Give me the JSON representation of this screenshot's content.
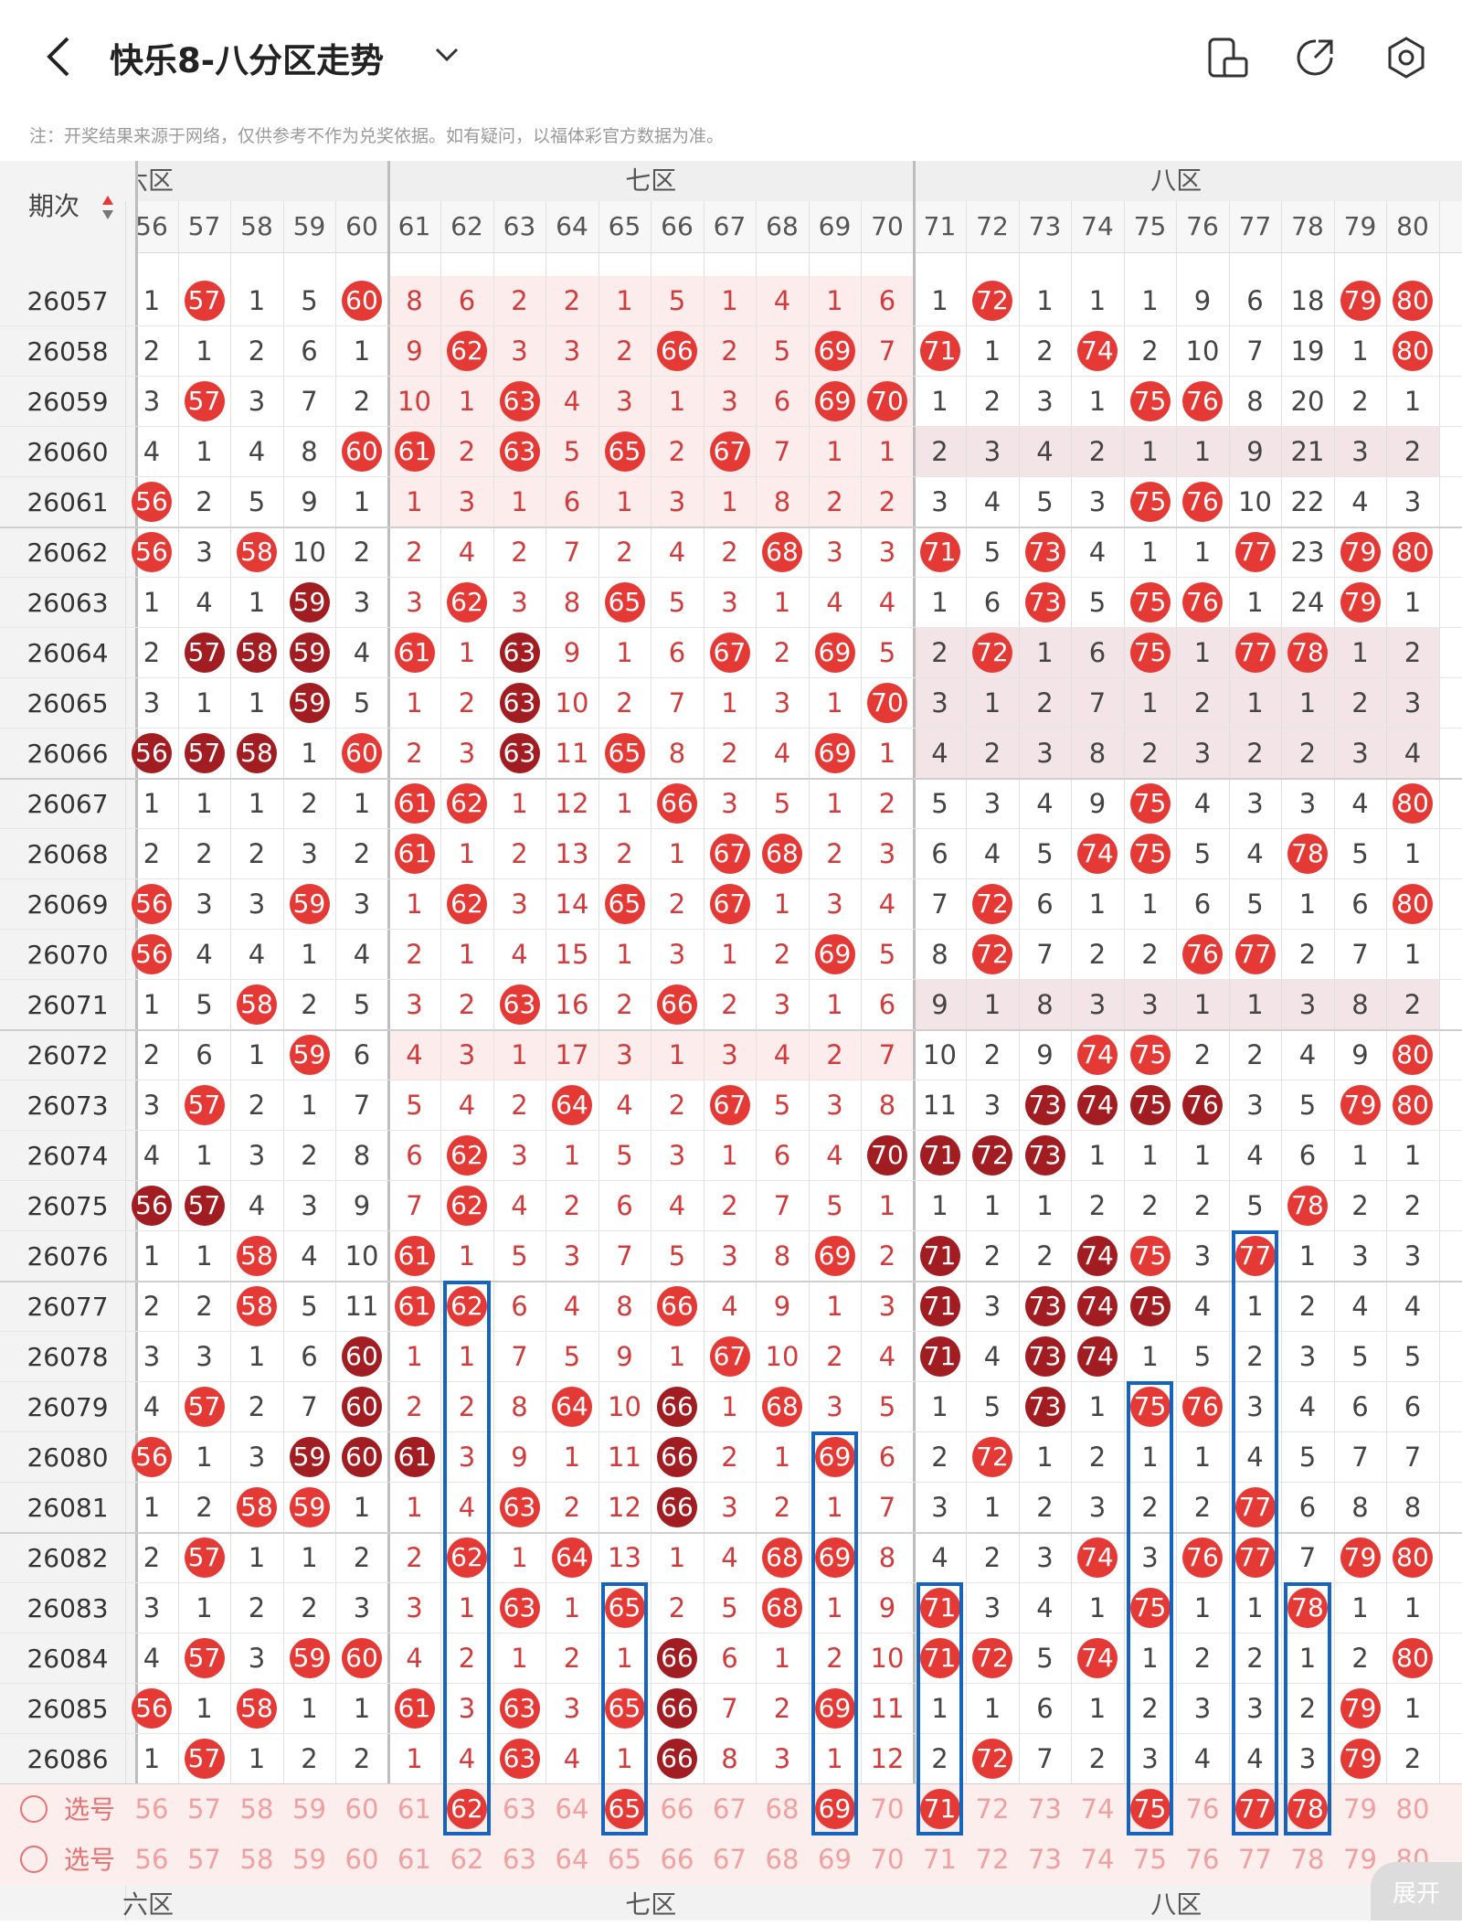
{
  "header": {
    "title": "快乐8-八分区走势"
  },
  "icons": [
    "back-icon",
    "chevron-down-icon",
    "device-icon",
    "share-icon",
    "settings-icon"
  ],
  "notice": "注：开奖结果来源于网络，仅供参考不作为兑奖依据。如有疑问，以福体彩官方数据为准。",
  "table": {
    "period_label": "期次",
    "zones": [
      "六区",
      "七区",
      "八区"
    ],
    "columns": [
      56,
      57,
      58,
      59,
      60,
      61,
      62,
      63,
      64,
      65,
      66,
      67,
      68,
      69,
      70,
      71,
      72,
      73,
      74,
      75,
      76,
      77,
      78,
      79,
      80
    ],
    "rows": [
      {
        "issue": "26057",
        "cells": [
          1,
          "57",
          1,
          5,
          "60",
          8,
          6,
          2,
          2,
          1,
          5,
          1,
          4,
          1,
          6,
          1,
          "72",
          1,
          1,
          1,
          9,
          6,
          18,
          "79",
          "80"
        ]
      },
      {
        "issue": "26058",
        "cells": [
          2,
          1,
          2,
          6,
          1,
          9,
          "62",
          3,
          3,
          2,
          "66",
          2,
          5,
          "69",
          7,
          "71",
          1,
          2,
          "74",
          2,
          10,
          7,
          19,
          1,
          "80"
        ]
      },
      {
        "issue": "26059",
        "cells": [
          3,
          "57",
          3,
          7,
          2,
          10,
          1,
          "63",
          4,
          3,
          1,
          3,
          6,
          "69",
          "70",
          1,
          2,
          3,
          1,
          "75",
          "76",
          8,
          20,
          2,
          1
        ]
      },
      {
        "issue": "26060",
        "cells": [
          4,
          1,
          4,
          8,
          "60",
          "61",
          2,
          "63",
          5,
          "65",
          2,
          "67",
          7,
          1,
          1,
          2,
          3,
          4,
          2,
          1,
          1,
          9,
          21,
          3,
          2
        ]
      },
      {
        "issue": "26061",
        "cells": [
          "56",
          2,
          5,
          9,
          1,
          1,
          3,
          1,
          6,
          1,
          3,
          1,
          8,
          2,
          2,
          3,
          4,
          5,
          3,
          "75",
          "76",
          10,
          22,
          4,
          3
        ]
      },
      {
        "issue": "26062",
        "cells": [
          "56",
          3,
          "58",
          10,
          2,
          2,
          4,
          2,
          7,
          2,
          4,
          2,
          "68",
          3,
          3,
          "71",
          5,
          "73",
          4,
          1,
          1,
          "77",
          23,
          "79",
          "80"
        ]
      },
      {
        "issue": "26063",
        "cells": [
          1,
          4,
          1,
          "59d",
          3,
          3,
          "62",
          3,
          8,
          "65",
          5,
          3,
          1,
          4,
          4,
          1,
          6,
          "73",
          5,
          "75",
          "76",
          1,
          24,
          "79",
          1
        ]
      },
      {
        "issue": "26064",
        "cells": [
          2,
          "57d",
          "58d",
          "59d",
          4,
          "61",
          1,
          "63d",
          9,
          1,
          6,
          "67",
          2,
          "69",
          5,
          2,
          "72",
          1,
          6,
          "75",
          1,
          "77",
          "78",
          1,
          2
        ]
      },
      {
        "issue": "26065",
        "cells": [
          3,
          1,
          1,
          "59d",
          5,
          1,
          2,
          "63d",
          10,
          2,
          7,
          1,
          3,
          1,
          "70",
          3,
          1,
          2,
          7,
          1,
          2,
          1,
          1,
          2,
          3
        ]
      },
      {
        "issue": "26066",
        "cells": [
          "56d",
          "57d",
          "58d",
          1,
          "60",
          2,
          3,
          "63d",
          11,
          "65",
          8,
          2,
          4,
          "69",
          1,
          4,
          2,
          3,
          8,
          2,
          3,
          2,
          2,
          3,
          4
        ]
      },
      {
        "issue": "26067",
        "cells": [
          1,
          1,
          1,
          2,
          1,
          "61",
          "62",
          1,
          12,
          1,
          "66",
          3,
          5,
          1,
          2,
          5,
          3,
          4,
          9,
          "75",
          4,
          3,
          3,
          4,
          "80"
        ]
      },
      {
        "issue": "26068",
        "cells": [
          2,
          2,
          2,
          3,
          2,
          "61",
          1,
          2,
          13,
          2,
          1,
          "67",
          "68",
          2,
          3,
          6,
          4,
          5,
          "74",
          "75",
          5,
          4,
          "78",
          5,
          1
        ]
      },
      {
        "issue": "26069",
        "cells": [
          "56",
          3,
          3,
          "59",
          3,
          1,
          "62",
          3,
          14,
          "65",
          2,
          "67",
          1,
          3,
          4,
          7,
          "72",
          6,
          1,
          1,
          6,
          5,
          1,
          6,
          "80"
        ]
      },
      {
        "issue": "26070",
        "cells": [
          "56",
          4,
          4,
          1,
          4,
          2,
          1,
          4,
          15,
          1,
          3,
          1,
          2,
          "69",
          5,
          8,
          "72",
          7,
          2,
          2,
          "76",
          "77",
          2,
          7,
          1
        ]
      },
      {
        "issue": "26071",
        "cells": [
          1,
          5,
          "58",
          2,
          5,
          3,
          2,
          "63",
          16,
          2,
          "66",
          2,
          3,
          1,
          6,
          9,
          1,
          8,
          3,
          3,
          1,
          1,
          3,
          8,
          2
        ]
      },
      {
        "issue": "26072",
        "cells": [
          2,
          6,
          1,
          "59",
          6,
          4,
          3,
          1,
          17,
          3,
          1,
          3,
          4,
          2,
          7,
          10,
          2,
          9,
          "74",
          "75",
          2,
          2,
          4,
          9,
          "80"
        ]
      },
      {
        "issue": "26073",
        "cells": [
          3,
          "57",
          2,
          1,
          7,
          5,
          4,
          2,
          "64",
          4,
          2,
          "67",
          5,
          3,
          8,
          11,
          3,
          "73d",
          "74d",
          "75d",
          "76d",
          3,
          5,
          "79",
          "80"
        ]
      },
      {
        "issue": "26074",
        "cells": [
          4,
          1,
          3,
          2,
          8,
          6,
          "62",
          3,
          1,
          5,
          3,
          1,
          6,
          4,
          "70d",
          "71d",
          "72d",
          "73d",
          1,
          1,
          1,
          4,
          6,
          1,
          1
        ]
      },
      {
        "issue": "26075",
        "cells": [
          "56d",
          "57d",
          4,
          3,
          9,
          7,
          "62",
          4,
          2,
          6,
          4,
          2,
          7,
          5,
          1,
          1,
          1,
          1,
          2,
          2,
          2,
          5,
          "78",
          2,
          2
        ]
      },
      {
        "issue": "26076",
        "cells": [
          1,
          1,
          "58",
          4,
          10,
          "61",
          1,
          5,
          3,
          7,
          5,
          3,
          8,
          "69",
          2,
          "71d",
          2,
          2,
          "74d",
          "75",
          3,
          "77",
          1,
          3,
          3
        ]
      },
      {
        "issue": "26077",
        "cells": [
          2,
          2,
          "58",
          5,
          11,
          "61",
          "62",
          6,
          4,
          8,
          "66",
          4,
          9,
          1,
          3,
          "71d",
          3,
          "73d",
          "74d",
          "75d",
          4,
          1,
          2,
          4,
          4
        ]
      },
      {
        "issue": "26078",
        "cells": [
          3,
          3,
          1,
          6,
          "60d",
          1,
          1,
          7,
          5,
          9,
          1,
          "67",
          10,
          2,
          4,
          "71d",
          4,
          "73d",
          "74d",
          1,
          5,
          2,
          3,
          5,
          5
        ]
      },
      {
        "issue": "26079",
        "cells": [
          4,
          "57",
          2,
          7,
          "60d",
          2,
          2,
          8,
          "64",
          10,
          "66d",
          1,
          "68",
          3,
          5,
          1,
          5,
          "73d",
          1,
          "75",
          "76",
          3,
          4,
          6,
          6
        ]
      },
      {
        "issue": "26080",
        "cells": [
          "56",
          1,
          3,
          "59d",
          "60d",
          "61d",
          3,
          9,
          1,
          11,
          "66d",
          2,
          1,
          "69",
          6,
          2,
          "72",
          1,
          2,
          1,
          1,
          4,
          5,
          7,
          7
        ]
      },
      {
        "issue": "26081",
        "cells": [
          1,
          2,
          "58",
          "59",
          1,
          1,
          4,
          "63",
          2,
          12,
          "66d",
          3,
          2,
          1,
          7,
          3,
          1,
          2,
          3,
          2,
          2,
          "77",
          6,
          8,
          8
        ]
      },
      {
        "issue": "26082",
        "cells": [
          2,
          "57",
          1,
          1,
          2,
          2,
          "62",
          1,
          "64",
          13,
          1,
          4,
          "68",
          "69",
          8,
          4,
          2,
          3,
          "74",
          3,
          "76",
          "77",
          7,
          "79",
          "80"
        ]
      },
      {
        "issue": "26083",
        "cells": [
          3,
          1,
          2,
          2,
          3,
          3,
          1,
          "63",
          1,
          "65",
          2,
          5,
          "68",
          1,
          9,
          "71",
          3,
          4,
          1,
          "75",
          1,
          1,
          "78",
          1,
          1
        ]
      },
      {
        "issue": "26084",
        "cells": [
          4,
          "57",
          3,
          "59",
          "60",
          4,
          2,
          1,
          2,
          1,
          "66d",
          6,
          1,
          2,
          10,
          "71",
          "72",
          5,
          "74",
          1,
          2,
          2,
          1,
          2,
          "80"
        ]
      },
      {
        "issue": "26085",
        "cells": [
          "56",
          1,
          "58",
          1,
          1,
          "61",
          3,
          "63",
          3,
          "65",
          "66d",
          7,
          2,
          "69",
          11,
          1,
          1,
          6,
          1,
          2,
          3,
          3,
          2,
          "79",
          1
        ]
      },
      {
        "issue": "26086",
        "cells": [
          1,
          "57",
          1,
          2,
          2,
          1,
          4,
          "63",
          4,
          1,
          "66d",
          8,
          3,
          1,
          12,
          2,
          "72",
          7,
          2,
          3,
          4,
          4,
          3,
          "79",
          2
        ]
      }
    ],
    "select_label": "选号",
    "select_row1": [
      "56",
      "57",
      "58",
      "59",
      "60",
      "61",
      "62",
      "63",
      "64",
      "65",
      "66",
      "67",
      "68",
      "69",
      "70",
      "71",
      "72",
      "73",
      "74",
      "75",
      "76",
      "77",
      "78",
      "79",
      "80"
    ],
    "select_row2": [
      "56",
      "57",
      "58",
      "59",
      "60",
      "61",
      "62",
      "63",
      "64",
      "65",
      "66",
      "67",
      "68",
      "69",
      "70",
      "71",
      "72",
      "73",
      "74",
      "75",
      "76",
      "77",
      "78",
      "79",
      "80"
    ],
    "expand_label": "展开"
  },
  "colors": {
    "ball_red": "#e53935",
    "ball_dark": "#a11d22",
    "num_gray": "#444444",
    "num_red": "#d13b3b",
    "box_blue": "#1565c0"
  }
}
